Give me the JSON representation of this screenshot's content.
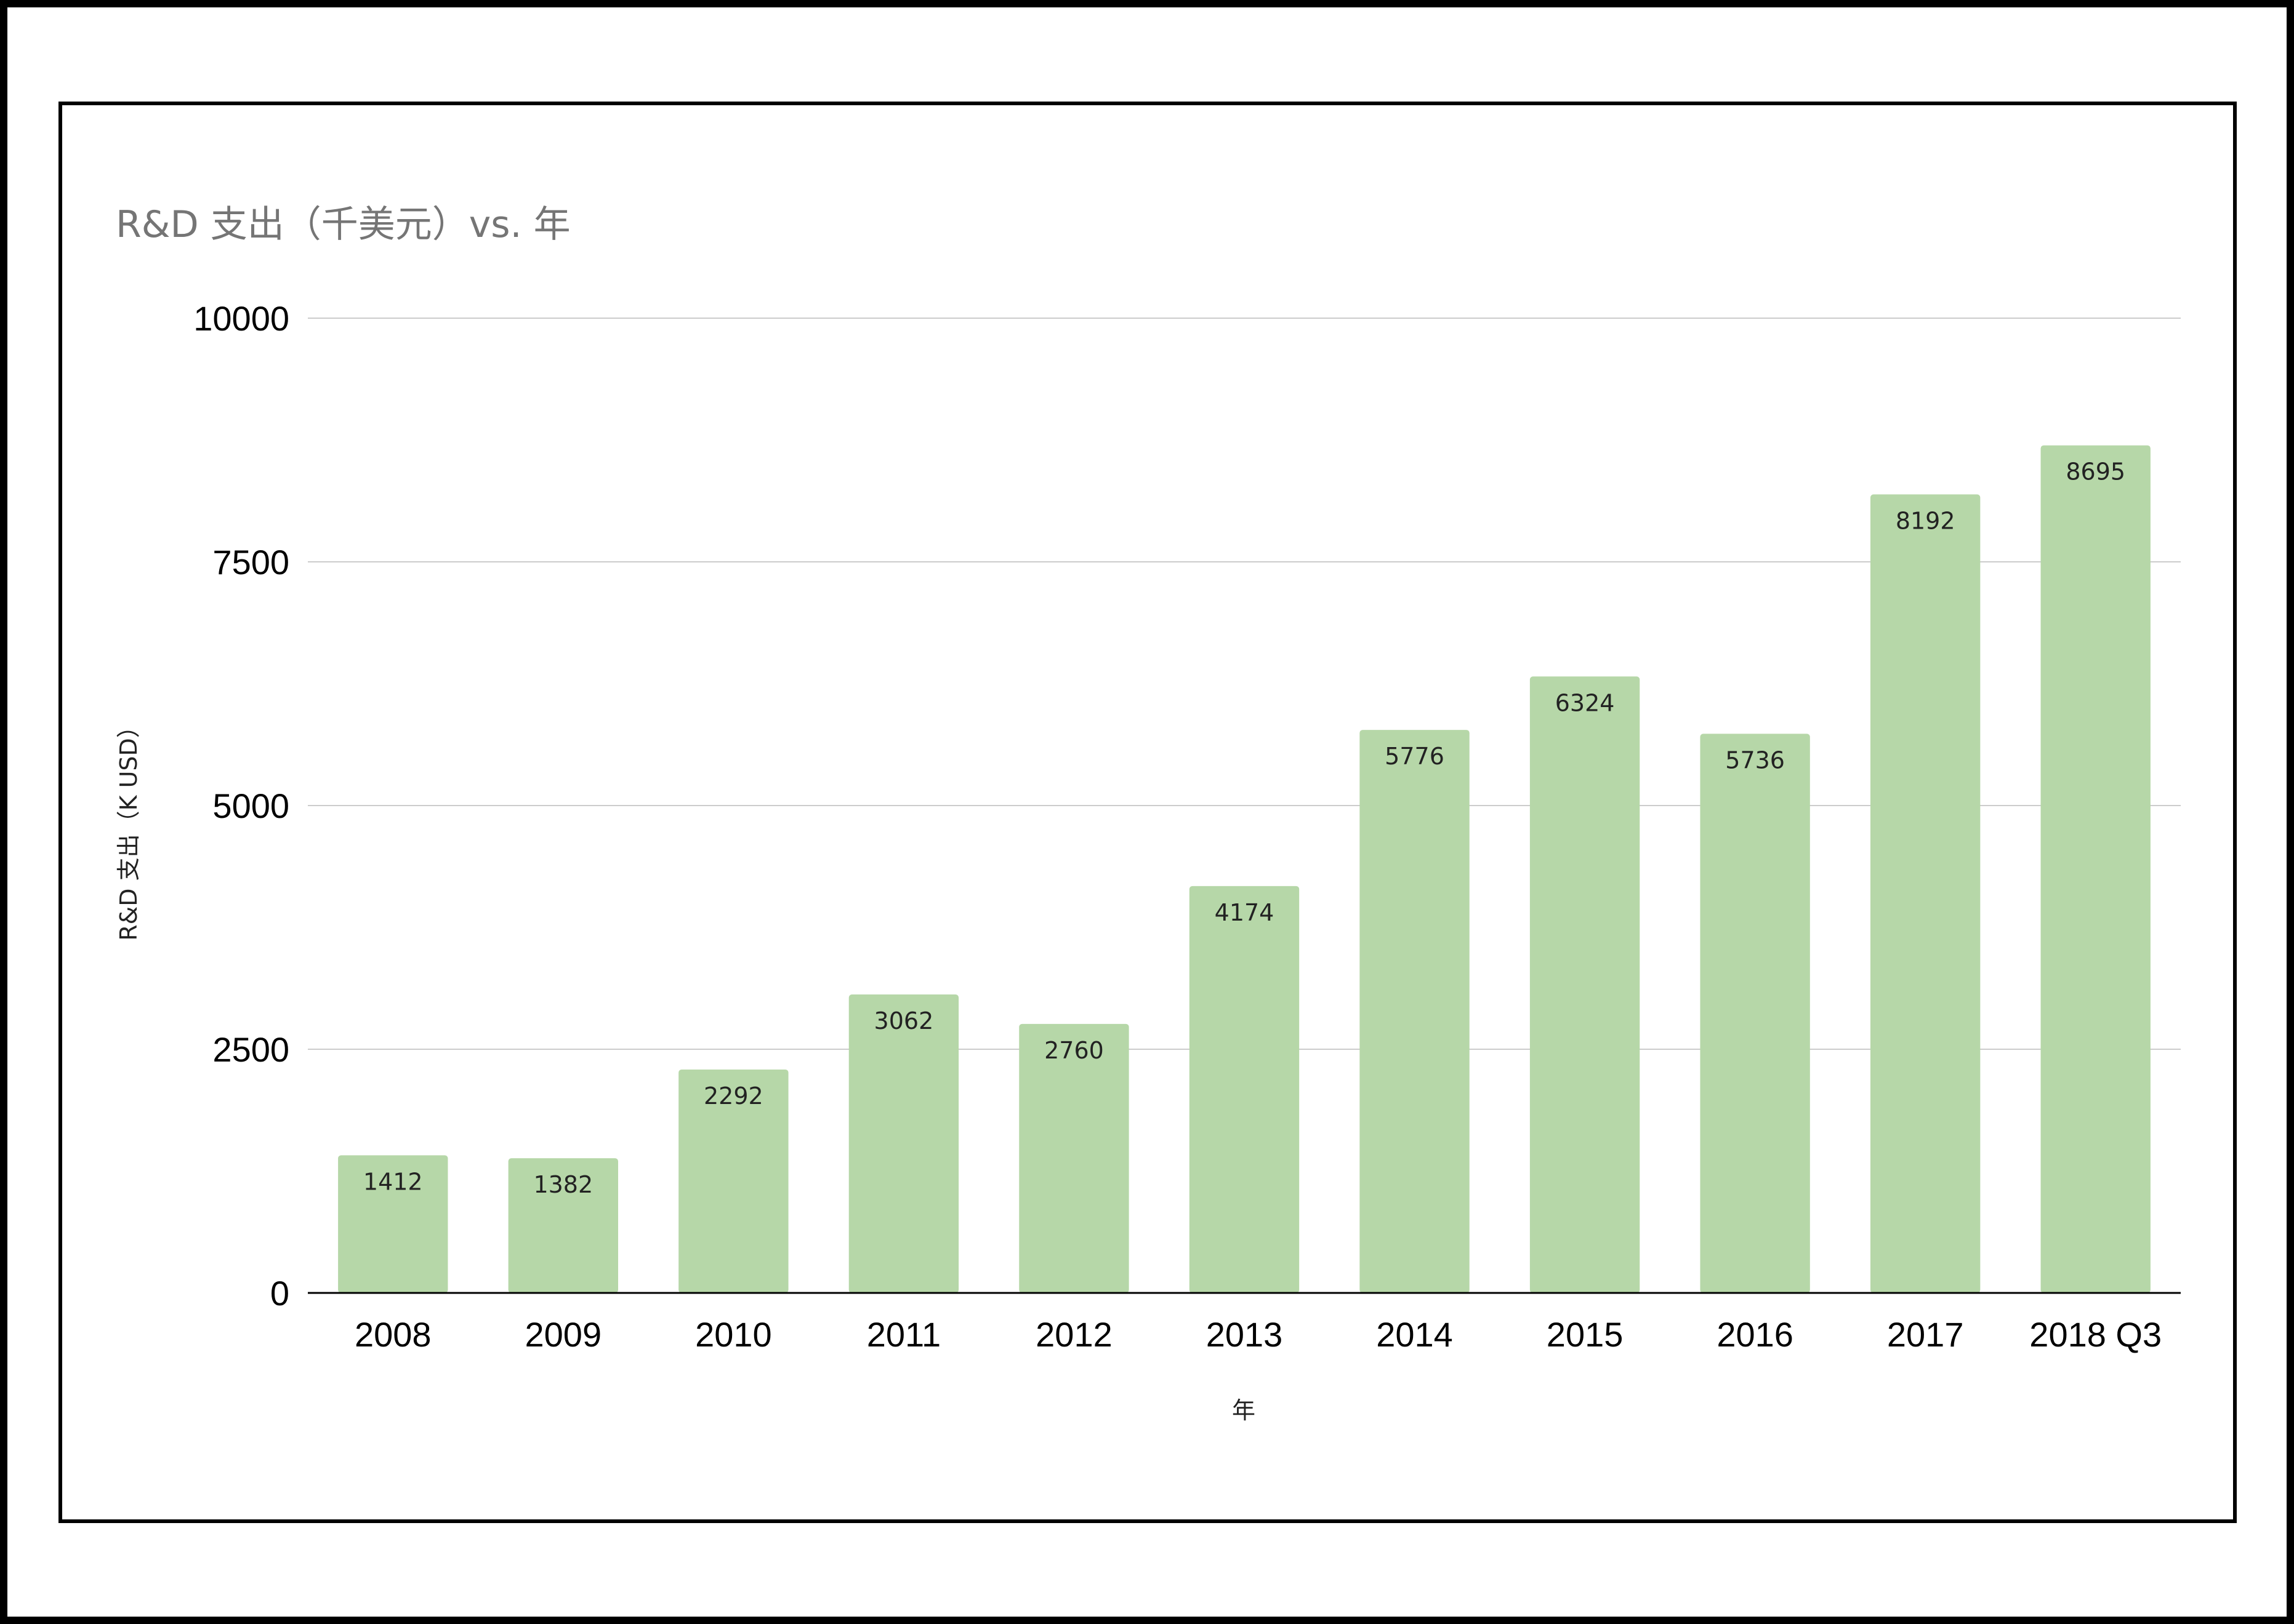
{
  "chart_data": {
    "type": "bar",
    "title": "R&D 支出（千美元）vs. 年",
    "xlabel": "年",
    "ylabel": "R&D 支出（K USD）",
    "categories": [
      "2008",
      "2009",
      "2010",
      "2011",
      "2012",
      "2013",
      "2014",
      "2015",
      "2016",
      "2017",
      "2018 Q3"
    ],
    "values": [
      1412,
      1382,
      2292,
      3062,
      2760,
      4174,
      5776,
      6324,
      5736,
      8192,
      8695
    ],
    "ylim": [
      0,
      10000
    ],
    "yticks": [
      0,
      2500,
      5000,
      7500,
      10000
    ],
    "data_labels": true,
    "grid": true,
    "legend": "none",
    "colors": {
      "bar": "#b6d7a8",
      "grid": "#cccccc",
      "baseline": "#000000"
    }
  }
}
